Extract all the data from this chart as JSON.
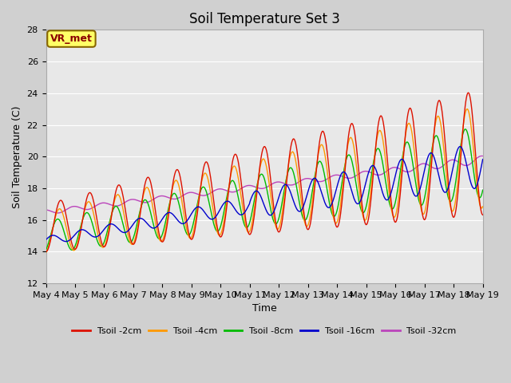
{
  "title": "Soil Temperature Set 3",
  "xlabel": "Time",
  "ylabel": "Soil Temperature (C)",
  "ylim": [
    12,
    28
  ],
  "xlim": [
    0,
    15
  ],
  "x_tick_labels": [
    "May 4",
    "May 5",
    "May 6",
    "May 7",
    "May 8",
    "May 9",
    "May 10",
    "May 11",
    "May 12",
    "May 13",
    "May 14",
    "May 15",
    "May 16",
    "May 17",
    "May 18",
    "May 19"
  ],
  "legend_labels": [
    "Tsoil -2cm",
    "Tsoil -4cm",
    "Tsoil -8cm",
    "Tsoil -16cm",
    "Tsoil -32cm"
  ],
  "colors": [
    "#dd1100",
    "#ff9900",
    "#00bb00",
    "#0000cc",
    "#bb44bb"
  ],
  "bg_color": "#e8e8e8",
  "fig_bg_color": "#d0d0d0",
  "annotation_text": "VR_met",
  "title_fontsize": 12,
  "label_fontsize": 9,
  "tick_fontsize": 8
}
